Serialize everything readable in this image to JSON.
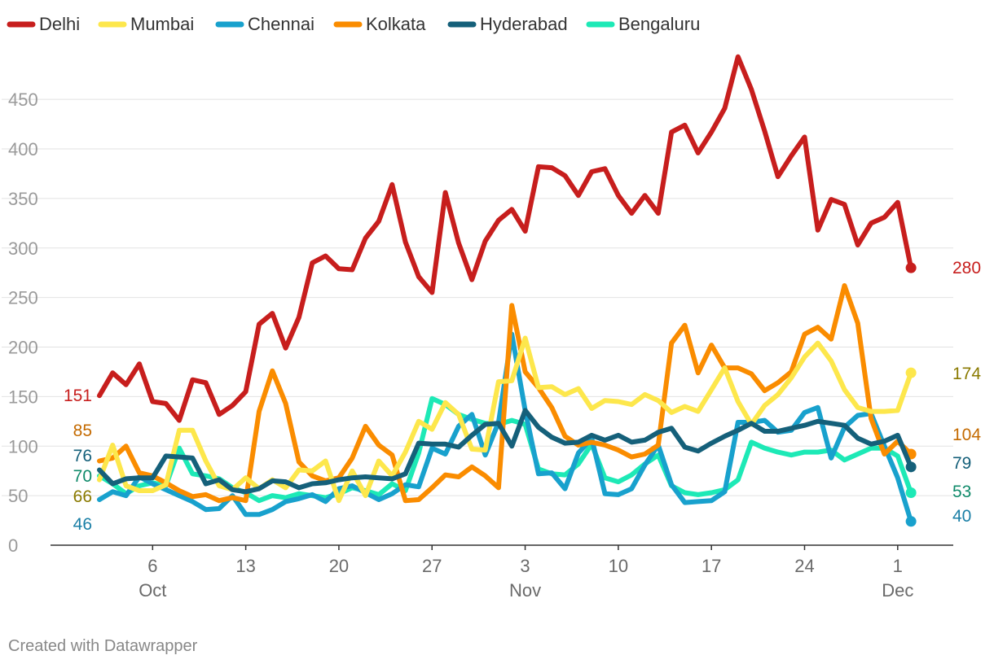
{
  "chart_data": {
    "type": "line",
    "title": "",
    "xlabel": "",
    "ylabel": "",
    "ylim": [
      0,
      500
    ],
    "yticks": [
      0,
      50,
      100,
      150,
      200,
      250,
      300,
      350,
      400,
      450
    ],
    "xticks": [
      {
        "label": "6",
        "sublabel": "Oct",
        "day": 6
      },
      {
        "label": "13",
        "sublabel": "",
        "day": 13
      },
      {
        "label": "20",
        "sublabel": "",
        "day": 20
      },
      {
        "label": "27",
        "sublabel": "",
        "day": 27
      },
      {
        "label": "3",
        "sublabel": "Nov",
        "day": 34
      },
      {
        "label": "10",
        "sublabel": "",
        "day": 41
      },
      {
        "label": "17",
        "sublabel": "",
        "day": 48
      },
      {
        "label": "24",
        "sublabel": "",
        "day": 55
      },
      {
        "label": "1",
        "sublabel": "Dec",
        "day": 62
      }
    ],
    "x_start": "Oct 2",
    "x_end": "Dec 1",
    "grid": true,
    "legend_position": "top-left",
    "series": [
      {
        "name": "Delhi",
        "color": "#c71e1d",
        "label_color": "#c71e1d",
        "start_label": "151",
        "end_label": "280",
        "values": [
          151,
          174,
          162,
          183,
          145,
          143,
          126,
          167,
          164,
          132,
          141,
          155,
          223,
          234,
          199,
          230,
          285,
          292,
          279,
          278,
          310,
          327,
          364,
          306,
          271,
          255,
          356,
          305,
          268,
          307,
          328,
          339,
          317,
          382,
          381,
          373,
          353,
          377,
          380,
          353,
          335,
          353,
          335,
          417,
          424,
          396,
          417,
          441,
          493,
          460,
          418,
          372,
          393,
          412,
          318,
          349,
          344,
          303,
          325,
          331,
          346,
          280
        ]
      },
      {
        "name": "Mumbai",
        "color": "#fde74c",
        "label_color": "#8a7a00",
        "start_label": "66",
        "end_label": "174",
        "values": [
          66,
          101,
          60,
          55,
          55,
          61,
          116,
          116,
          85,
          60,
          56,
          68,
          57,
          66,
          58,
          76,
          75,
          85,
          45,
          75,
          50,
          85,
          70,
          94,
          125,
          117,
          144,
          132,
          97,
          96,
          165,
          166,
          209,
          159,
          160,
          152,
          158,
          138,
          146,
          145,
          142,
          152,
          146,
          134,
          140,
          135,
          157,
          179,
          145,
          122,
          141,
          152,
          169,
          190,
          204,
          186,
          157,
          139,
          135,
          135,
          136,
          174
        ]
      },
      {
        "name": "Chennai",
        "color": "#18a1cd",
        "label_color": "#1a7fa6",
        "start_label": "46",
        "end_label": "40",
        "values": [
          46,
          54,
          50,
          69,
          62,
          56,
          50,
          44,
          36,
          37,
          50,
          31,
          31,
          36,
          44,
          47,
          51,
          44,
          57,
          60,
          53,
          46,
          52,
          61,
          59,
          98,
          92,
          120,
          132,
          91,
          124,
          213,
          136,
          72,
          73,
          57,
          93,
          108,
          52,
          51,
          57,
          81,
          101,
          61,
          43,
          44,
          45,
          54,
          124,
          124,
          126,
          114,
          116,
          134,
          139,
          88,
          119,
          131,
          133,
          100,
          68,
          24
        ]
      },
      {
        "name": "Kolkata",
        "color": "#fa8c00",
        "label_color": "#c46a00",
        "start_label": "85",
        "end_label": "104",
        "values": [
          85,
          88,
          100,
          73,
          70,
          63,
          55,
          49,
          51,
          45,
          48,
          45,
          135,
          176,
          143,
          84,
          70,
          65,
          68,
          88,
          120,
          101,
          91,
          45,
          46,
          58,
          71,
          69,
          79,
          70,
          58,
          242,
          175,
          159,
          139,
          110,
          101,
          104,
          101,
          96,
          89,
          92,
          101,
          204,
          222,
          174,
          202,
          179,
          179,
          173,
          156,
          164,
          175,
          213,
          220,
          208,
          262,
          224,
          128,
          92,
          105,
          92
        ]
      },
      {
        "name": "Hyderabad",
        "color": "#15607a",
        "label_color": "#15607a",
        "start_label": "76",
        "end_label": "79",
        "values": [
          76,
          62,
          67,
          68,
          68,
          90,
          89,
          88,
          62,
          66,
          56,
          54,
          57,
          65,
          64,
          58,
          62,
          63,
          66,
          68,
          69,
          68,
          67,
          72,
          103,
          102,
          102,
          99,
          111,
          122,
          123,
          100,
          136,
          119,
          109,
          103,
          104,
          111,
          106,
          111,
          104,
          106,
          114,
          118,
          99,
          95,
          103,
          110,
          116,
          123,
          115,
          115,
          118,
          121,
          125,
          123,
          121,
          108,
          102,
          105,
          111,
          79
        ]
      },
      {
        "name": "Bengaluru",
        "color": "#1de9b6",
        "label_color": "#0f8a6a",
        "start_label": "70",
        "end_label": "53",
        "values": [
          70,
          62,
          52,
          60,
          63,
          60,
          98,
          72,
          70,
          67,
          58,
          53,
          45,
          50,
          48,
          52,
          50,
          48,
          52,
          58,
          55,
          51,
          62,
          55,
          93,
          148,
          142,
          132,
          127,
          123,
          122,
          126,
          122,
          77,
          72,
          71,
          82,
          102,
          68,
          64,
          71,
          82,
          91,
          60,
          53,
          51,
          53,
          56,
          66,
          104,
          98,
          94,
          91,
          94,
          94,
          96,
          86,
          92,
          98,
          98,
          90,
          53
        ]
      }
    ],
    "credit": "Created with Datawrapper"
  }
}
